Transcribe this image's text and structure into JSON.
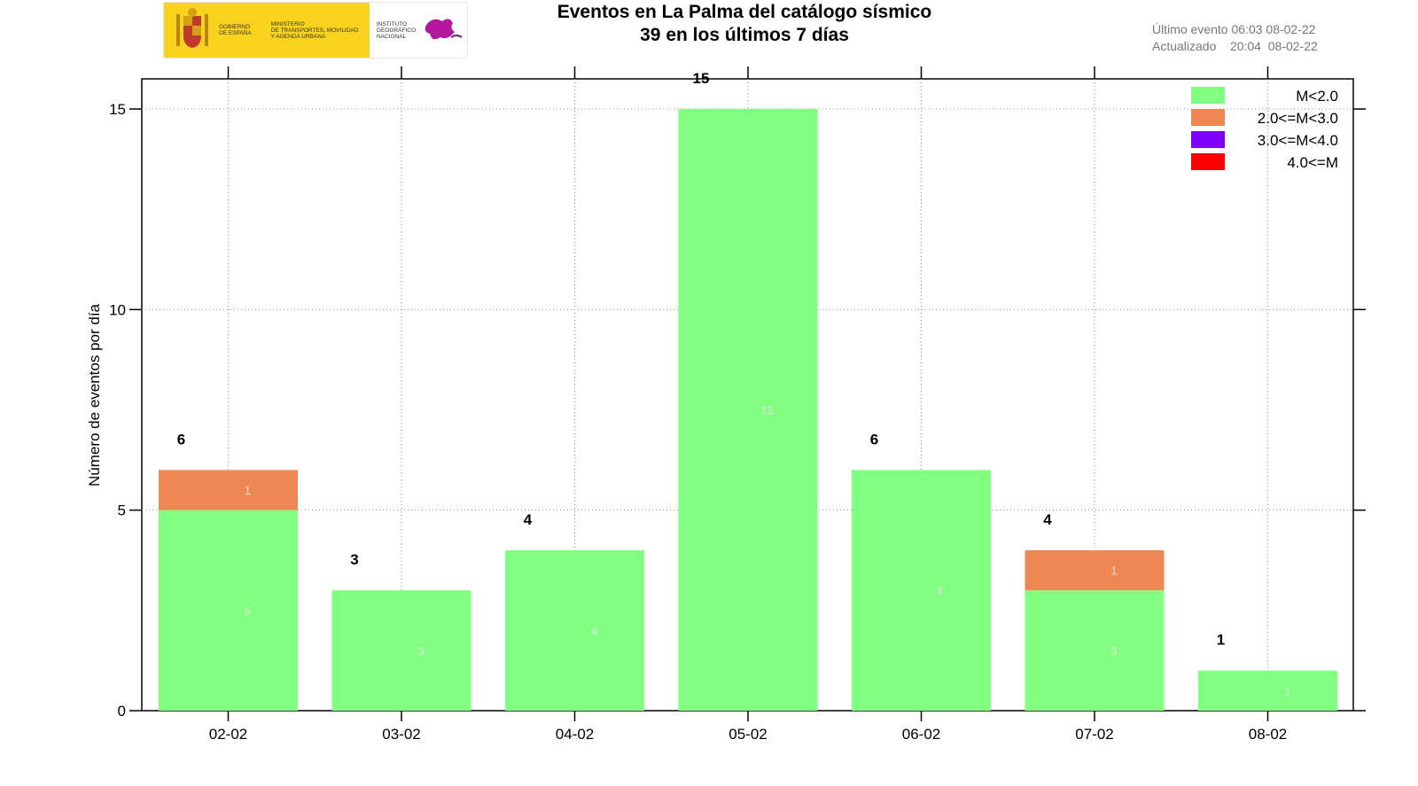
{
  "header": {
    "title_line1": "Eventos en La Palma del catálogo sísmico",
    "title_line2": "39 en los últimos 7 días",
    "last_event": "Último evento 06:03 08-02-22",
    "updated": "Actualizado    20:04  08-02-22"
  },
  "logos": {
    "gobierno": "GOBIERNO\nDE ESPAÑA",
    "ministerio": "MINISTERIO\nDE TRANSPORTES, MOVILIDAD\nY AGENDA URBANA",
    "instituto": "INSTITUTO\nGEOGRÁFICO\nNACIONAL"
  },
  "chart_data": {
    "type": "bar",
    "stacked": true,
    "categories": [
      "02-02",
      "03-02",
      "04-02",
      "05-02",
      "06-02",
      "07-02",
      "08-02"
    ],
    "series": [
      {
        "name": "M<2.0",
        "color": "#80ff80",
        "values": [
          5,
          3,
          4,
          15,
          6,
          3,
          1
        ]
      },
      {
        "name": "2.0<=M<3.0",
        "color": "#ee8752",
        "values": [
          1,
          0,
          0,
          0,
          0,
          1,
          0
        ]
      },
      {
        "name": "3.0<=M<4.0",
        "color": "#8000ff",
        "values": [
          0,
          0,
          0,
          0,
          0,
          0,
          0
        ]
      },
      {
        "name": "4.0<=M",
        "color": "#ff0000",
        "values": [
          0,
          0,
          0,
          0,
          0,
          0,
          0
        ]
      }
    ],
    "totals": [
      6,
      3,
      4,
      15,
      6,
      4,
      1
    ],
    "ylabel": "Número de eventos por día",
    "xlabel": "",
    "ylim": [
      0,
      15
    ],
    "yticks": [
      0,
      5,
      10,
      15
    ],
    "grid": true,
    "legend_position": "top-right"
  }
}
